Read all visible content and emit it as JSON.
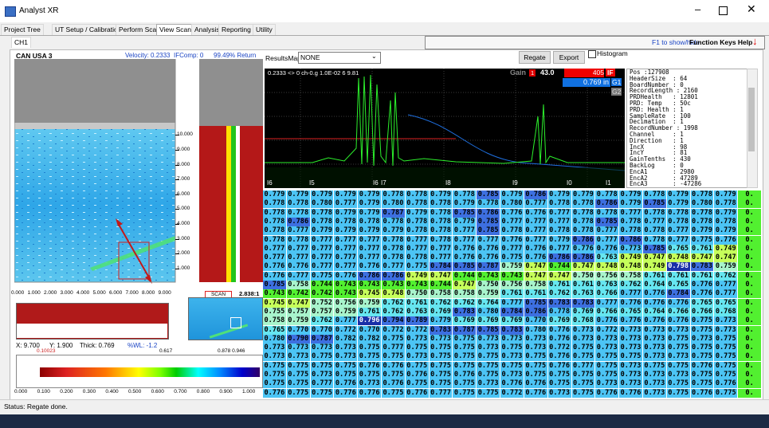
{
  "window": {
    "title": "Analyst XR"
  },
  "menu_tabs": [
    "Project Tree",
    "UT Setup / Calibration",
    "Perform Scan",
    "View Scan",
    "Analysis",
    "Reporting",
    "Utility"
  ],
  "channel_tab": "CH1",
  "function_keys": {
    "hint": "F1 to show/hide",
    "button": "Function Keys Help"
  },
  "left_panel": {
    "title": "CAN USA 3",
    "velocity": "Velocity: 0.2333",
    "ifcomp": "IFComp: 0",
    "return": "99.49% Return",
    "y_ticks": [
      "10.000",
      "9.000",
      "8.000",
      "7.000",
      "6.000",
      "5.000",
      "4.000",
      "3.000",
      "2.000",
      "1.000"
    ],
    "x_ticks": [
      "0.000",
      "1.000",
      "2.000",
      "3.000",
      "4.000",
      "5.000",
      "6.000",
      "7.000",
      "8.000",
      "9.000"
    ],
    "scan_label": "SCAN",
    "ratio": "2.838:1",
    "readout": [
      "X: 9.700",
      "Y: 1.900",
      "Thick: 0.769",
      "%WL: -1.2"
    ],
    "colorbar": {
      "markers": [
        "0.10023",
        "0.617",
        "0.878 0.946"
      ],
      "ticks": [
        "0.000",
        "0.100",
        "0.200",
        "0.300",
        "0.400",
        "0.500",
        "0.600",
        "0.700",
        "0.800",
        "0.900",
        "1.000"
      ]
    }
  },
  "toolbar": {
    "results_label": "ResultsMap:",
    "results_value": "NONE",
    "regate": "Regate",
    "export": "Export",
    "histogram": "Histogram"
  },
  "ascan": {
    "header": "0.2333 <> 0 ch-0.g 1.0E-02 6 9.81",
    "gain_label": "Gain",
    "gain_channel": "1",
    "gain_value": "43.0",
    "count": "405",
    "if_label": "IF",
    "thickness": "0.769 in",
    "gate1": "G1",
    "gate2": "G2",
    "gate_labels": [
      "I6",
      "I5",
      "I6",
      "I7",
      "I8",
      "I9",
      "I0",
      "I1"
    ]
  },
  "info": [
    "Pos :127908",
    "HeaderSize  : 64",
    "BoardNumber : 0",
    "RecordLength : 2160",
    "PRDHealth   : 12801",
    "PRD: Temp   : 50c",
    "PRD: Health : 1",
    "SampleRate  : 100",
    "Decimation  : 1",
    "RecordNumber : 1998",
    "Channel     : 1",
    "Direction   : 1",
    "IncX        : 98",
    "IncY        : 81",
    "GainTenths  : 430",
    "BackLog     : 0",
    "EncA1       : 2980",
    "EncA2       : 47289",
    "EncA3       : -47286"
  ],
  "grid": [
    [
      "0.779",
      "0.779",
      "0.779",
      "0.779",
      "0.779",
      "0.778",
      "0.778",
      "0.779",
      "0.778",
      "0.785",
      "0.779",
      "0.786",
      "0.779",
      "0.779",
      "0.778",
      "0.779",
      "0.778",
      "0.779",
      "0.778",
      "0.779",
      "0."
    ],
    [
      "0.778",
      "0.778",
      "0.780",
      "0.777",
      "0.779",
      "0.780",
      "0.778",
      "0.778",
      "0.779",
      "0.778",
      "0.780",
      "0.777",
      "0.778",
      "0.778",
      "0.786",
      "0.779",
      "0.785",
      "0.779",
      "0.780",
      "0.778",
      "0."
    ],
    [
      "0.778",
      "0.778",
      "0.778",
      "0.779",
      "0.779",
      "0.787",
      "0.779",
      "0.778",
      "0.785",
      "0.786",
      "0.776",
      "0.776",
      "0.777",
      "0.778",
      "0.778",
      "0.777",
      "0.778",
      "0.778",
      "0.778",
      "0.779",
      "0."
    ],
    [
      "0.778",
      "0.786",
      "0.778",
      "0.778",
      "0.778",
      "0.778",
      "0.778",
      "0.778",
      "0.779",
      "0.785",
      "0.777",
      "0.777",
      "0.777",
      "0.778",
      "0.785",
      "0.778",
      "0.777",
      "0.778",
      "0.778",
      "0.778",
      "0."
    ],
    [
      "0.778",
      "0.777",
      "0.779",
      "0.779",
      "0.779",
      "0.779",
      "0.778",
      "0.778",
      "0.777",
      "0.785",
      "0.778",
      "0.777",
      "0.778",
      "0.778",
      "0.777",
      "0.778",
      "0.778",
      "0.777",
      "0.779",
      "0.779",
      "0."
    ],
    [
      "0.778",
      "0.778",
      "0.777",
      "0.777",
      "0.777",
      "0.778",
      "0.777",
      "0.778",
      "0.777",
      "0.777",
      "0.776",
      "0.777",
      "0.779",
      "0.786",
      "0.777",
      "0.786",
      "0.778",
      "0.777",
      "0.775",
      "0.776",
      "0."
    ],
    [
      "0.777",
      "0.777",
      "0.777",
      "0.777",
      "0.777",
      "0.778",
      "0.777",
      "0.777",
      "0.776",
      "0.776",
      "0.777",
      "0.776",
      "0.777",
      "0.776",
      "0.776",
      "0.773",
      "0.785",
      "0.765",
      "0.761",
      "0.749",
      "0."
    ],
    [
      "0.777",
      "0.777",
      "0.777",
      "0.777",
      "0.777",
      "0.778",
      "0.778",
      "0.777",
      "0.776",
      "0.776",
      "0.775",
      "0.776",
      "0.786",
      "0.786",
      "0.763",
      "0.749",
      "0.747",
      "0.748",
      "0.747",
      "0.747",
      "0."
    ],
    [
      "0.776",
      "0.776",
      "0.777",
      "0.777",
      "0.776",
      "0.777",
      "0.775",
      "0.784",
      "0.785",
      "0.787",
      "0.759",
      "0.747",
      "0.744",
      "0.747",
      "0.748",
      "0.748",
      "0.749",
      "0.798",
      "0.783",
      "0.759",
      "0."
    ],
    [
      "0.776",
      "0.777",
      "0.775",
      "0.776",
      "0.786",
      "0.786",
      "0.749",
      "0.747",
      "0.744",
      "0.743",
      "0.743",
      "0.747",
      "0.747",
      "0.750",
      "0.756",
      "0.758",
      "0.761",
      "0.761",
      "0.761",
      "0.762",
      "0."
    ],
    [
      "0.785",
      "0.758",
      "0.744",
      "0.743",
      "0.743",
      "0.743",
      "0.743",
      "0.744",
      "0.747",
      "0.750",
      "0.756",
      "0.758",
      "0.761",
      "0.761",
      "0.763",
      "0.762",
      "0.764",
      "0.765",
      "0.776",
      "0.777",
      "0."
    ],
    [
      "0.743",
      "0.742",
      "0.742",
      "0.743",
      "0.745",
      "0.748",
      "0.750",
      "0.758",
      "0.758",
      "0.759",
      "0.761",
      "0.761",
      "0.762",
      "0.763",
      "0.766",
      "0.777",
      "0.776",
      "0.784",
      "0.776",
      "0.777",
      "0."
    ],
    [
      "0.745",
      "0.747",
      "0.752",
      "0.756",
      "0.759",
      "0.762",
      "0.761",
      "0.762",
      "0.762",
      "0.764",
      "0.777",
      "0.785",
      "0.783",
      "0.783",
      "0.777",
      "0.776",
      "0.776",
      "0.776",
      "0.765",
      "0.765",
      "0."
    ],
    [
      "0.755",
      "0.757",
      "0.757",
      "0.759",
      "0.761",
      "0.762",
      "0.763",
      "0.769",
      "0.783",
      "0.780",
      "0.784",
      "0.786",
      "0.778",
      "0.769",
      "0.766",
      "0.765",
      "0.764",
      "0.766",
      "0.766",
      "0.768",
      "0."
    ],
    [
      "0.758",
      "0.759",
      "0.762",
      "0.777",
      "0.796",
      "0.794",
      "0.789",
      "0.779",
      "0.769",
      "0.769",
      "0.769",
      "0.770",
      "0.769",
      "0.768",
      "0.776",
      "0.776",
      "0.776",
      "0.776",
      "0.775",
      "0.773",
      "0."
    ],
    [
      "0.765",
      "0.770",
      "0.770",
      "0.772",
      "0.770",
      "0.772",
      "0.772",
      "0.783",
      "0.787",
      "0.785",
      "0.783",
      "0.780",
      "0.776",
      "0.773",
      "0.772",
      "0.773",
      "0.773",
      "0.773",
      "0.775",
      "0.773",
      "0."
    ],
    [
      "0.780",
      "0.790",
      "0.787",
      "0.782",
      "0.782",
      "0.775",
      "0.773",
      "0.773",
      "0.775",
      "0.773",
      "0.773",
      "0.773",
      "0.776",
      "0.773",
      "0.773",
      "0.773",
      "0.773",
      "0.775",
      "0.773",
      "0.775",
      "0."
    ],
    [
      "0.773",
      "0.773",
      "0.773",
      "0.773",
      "0.775",
      "0.777",
      "0.775",
      "0.775",
      "0.775",
      "0.773",
      "0.775",
      "0.773",
      "0.772",
      "0.775",
      "0.773",
      "0.773",
      "0.773",
      "0.775",
      "0.775",
      "0.775",
      "0."
    ],
    [
      "0.773",
      "0.773",
      "0.775",
      "0.773",
      "0.775",
      "0.775",
      "0.773",
      "0.775",
      "0.775",
      "0.775",
      "0.773",
      "0.775",
      "0.776",
      "0.775",
      "0.775",
      "0.775",
      "0.773",
      "0.773",
      "0.775",
      "0.775",
      "0."
    ],
    [
      "0.775",
      "0.775",
      "0.775",
      "0.775",
      "0.776",
      "0.776",
      "0.775",
      "0.775",
      "0.775",
      "0.775",
      "0.775",
      "0.775",
      "0.776",
      "0.777",
      "0.775",
      "0.773",
      "0.775",
      "0.775",
      "0.776",
      "0.775",
      "0."
    ],
    [
      "0.775",
      "0.775",
      "0.773",
      "0.775",
      "0.775",
      "0.775",
      "0.776",
      "0.775",
      "0.776",
      "0.775",
      "0.773",
      "0.775",
      "0.775",
      "0.775",
      "0.775",
      "0.773",
      "0.773",
      "0.773",
      "0.775",
      "0.775",
      "0."
    ],
    [
      "0.775",
      "0.775",
      "0.777",
      "0.776",
      "0.773",
      "0.776",
      "0.775",
      "0.775",
      "0.775",
      "0.773",
      "0.776",
      "0.776",
      "0.775",
      "0.775",
      "0.773",
      "0.773",
      "0.773",
      "0.775",
      "0.775",
      "0.776",
      "0."
    ],
    [
      "0.776",
      "0.775",
      "0.775",
      "0.776",
      "0.776",
      "0.775",
      "0.776",
      "0.777",
      "0.775",
      "0.775",
      "0.772",
      "0.776",
      "0.773",
      "0.775",
      "0.776",
      "0.776",
      "0.773",
      "0.775",
      "0.776",
      "0.775",
      "0."
    ]
  ],
  "status": "Status: Regate done."
}
